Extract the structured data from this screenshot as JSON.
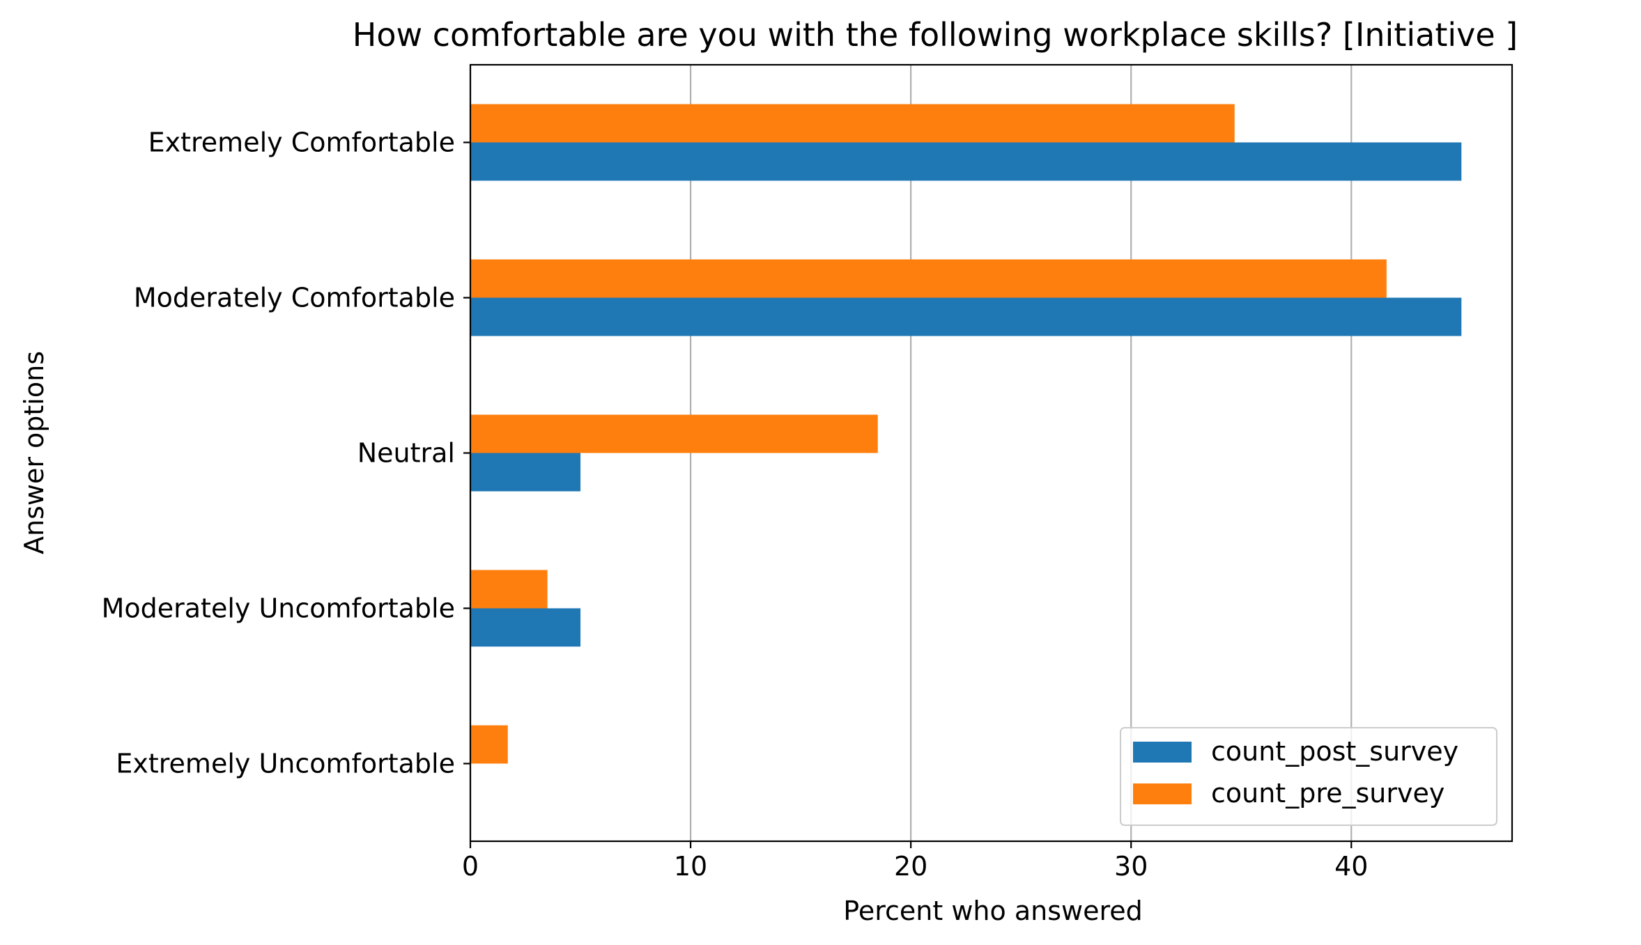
{
  "chart_data": {
    "type": "bar",
    "orientation": "horizontal",
    "title": "How comfortable are you with the following workplace skills? [Initiative ]",
    "xlabel": "Percent who answered",
    "ylabel": "Answer options",
    "categories": [
      "Extremely Comfortable",
      "Moderately Comfortable",
      "Neutral",
      "Moderately Uncomfortable",
      "Extremely Uncomfortable"
    ],
    "series": [
      {
        "name": "count_post_survey",
        "color": "#1f77b4",
        "values": [
          45.0,
          45.0,
          5.0,
          5.0,
          0.0
        ]
      },
      {
        "name": "count_pre_survey",
        "color": "#ff7f0e",
        "values": [
          34.7,
          41.6,
          18.5,
          3.5,
          1.7
        ]
      }
    ],
    "xlim": [
      0,
      47.3
    ],
    "xticks": [
      0,
      10,
      20,
      30,
      40
    ],
    "grid": "x",
    "legend_position": "lower-right"
  }
}
